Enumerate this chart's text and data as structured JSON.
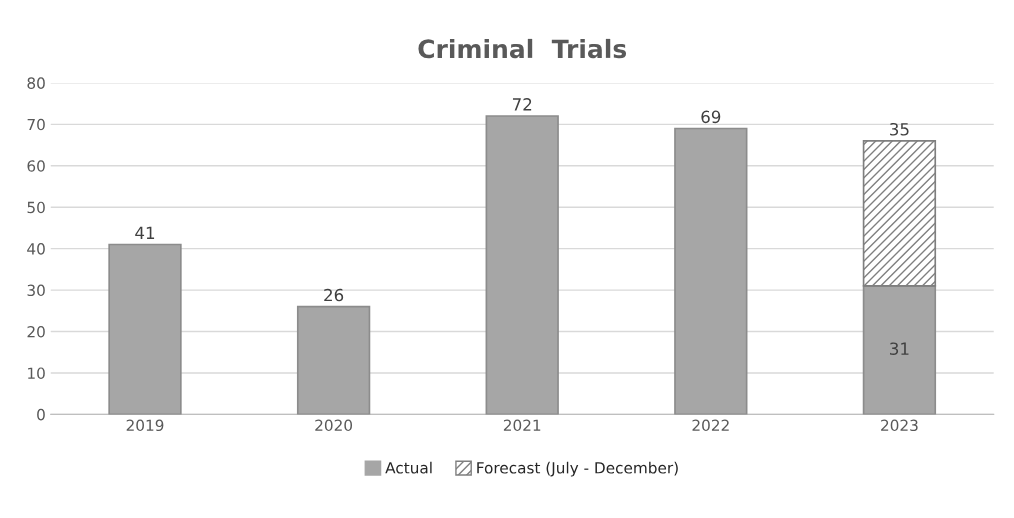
{
  "chart_data": {
    "type": "bar",
    "title": "Criminal  Trials",
    "categories": [
      "2019",
      "2020",
      "2021",
      "2022",
      "2023"
    ],
    "stacked": true,
    "series": [
      {
        "name": "Actual",
        "color": "#a6a6a6",
        "values": [
          41,
          26,
          72,
          69,
          31
        ]
      },
      {
        "name": "Forecast (July - December)",
        "color": "#7f7f7f",
        "values": [
          null,
          null,
          null,
          null,
          35
        ]
      }
    ],
    "ylim": [
      0,
      80
    ],
    "yticks": [
      0,
      10,
      20,
      30,
      40,
      50,
      60,
      70,
      80
    ],
    "grid": "y",
    "legend": "bottom",
    "data_labels": true
  }
}
